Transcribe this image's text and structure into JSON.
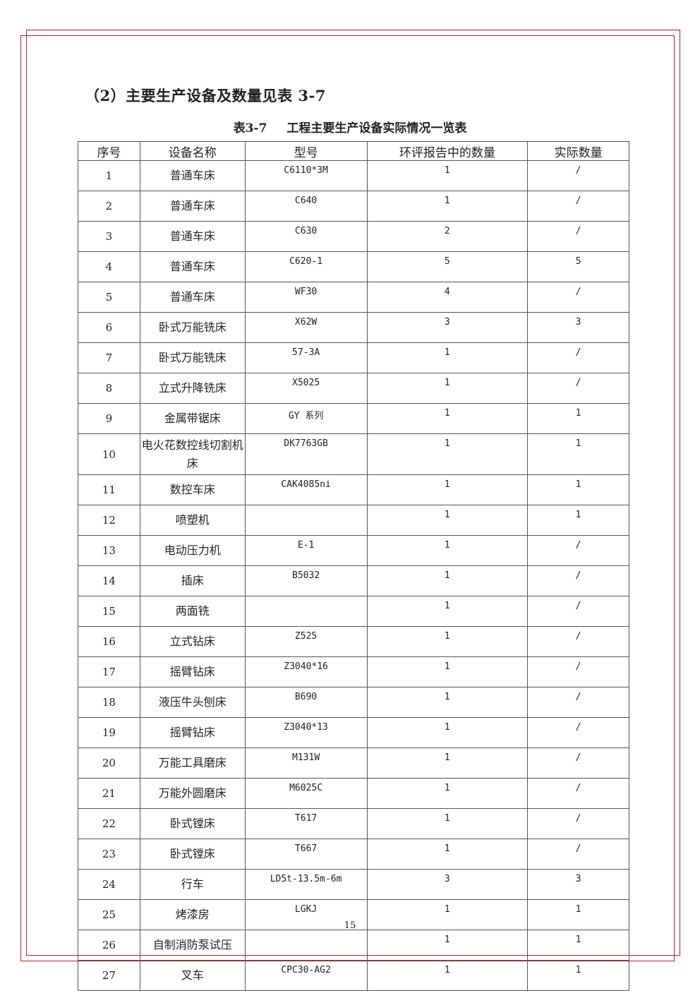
{
  "heading": "（2）主要生产设备及数量见表 3-7",
  "caption": {
    "number": "表3-7",
    "title": "工程主要生产设备实际情况一览表"
  },
  "table": {
    "headers": [
      "序号",
      "设备名称",
      "型号",
      "环评报告中的数量",
      "实际数量"
    ],
    "rows": [
      [
        "1",
        "普通车床",
        "C6110*3M",
        "1",
        "/"
      ],
      [
        "2",
        "普通车床",
        "C640",
        "1",
        "/"
      ],
      [
        "3",
        "普通车床",
        "C630",
        "2",
        "/"
      ],
      [
        "4",
        "普通车床",
        "C620-1",
        "5",
        "5"
      ],
      [
        "5",
        "普通车床",
        "WF30",
        "4",
        "/"
      ],
      [
        "6",
        "卧式万能铣床",
        "X62W",
        "3",
        "3"
      ],
      [
        "7",
        "卧式万能铣床",
        "57-3A",
        "1",
        "/"
      ],
      [
        "8",
        "立式升降铣床",
        "X5025",
        "1",
        "/"
      ],
      [
        "9",
        "金属带锯床",
        "GY 系列",
        "1",
        "1"
      ],
      [
        "10",
        "电火花数控线切割机床",
        "DK7763GB",
        "1",
        "1"
      ],
      [
        "11",
        "数控车床",
        "CAK4085ni",
        "1",
        "1"
      ],
      [
        "12",
        "喷塑机",
        "",
        "1",
        "1"
      ],
      [
        "13",
        "电动压力机",
        "E-1",
        "1",
        "/"
      ],
      [
        "14",
        "插床",
        "B5032",
        "1",
        "/"
      ],
      [
        "15",
        "两面铣",
        "",
        "1",
        "/"
      ],
      [
        "16",
        "立式钻床",
        "Z525",
        "1",
        "/"
      ],
      [
        "17",
        "摇臂钻床",
        "Z3040*16",
        "1",
        "/"
      ],
      [
        "18",
        "液压牛头刨床",
        "B690",
        "1",
        "/"
      ],
      [
        "19",
        "摇臂钻床",
        "Z3040*13",
        "1",
        "/"
      ],
      [
        "20",
        "万能工具磨床",
        "M131W",
        "1",
        "/"
      ],
      [
        "21",
        "万能外圆磨床",
        "M6025C",
        "1",
        "/"
      ],
      [
        "22",
        "卧式镗床",
        "T617",
        "1",
        "/"
      ],
      [
        "23",
        "卧式镗床",
        "T667",
        "1",
        "/"
      ],
      [
        "24",
        "行车",
        "LD5t-13.5m-6m",
        "3",
        "3"
      ],
      [
        "25",
        "烤漆房",
        "LGKJ",
        "1",
        "1"
      ],
      [
        "26",
        "自制消防泵试压",
        "",
        "1",
        "1"
      ],
      [
        "27",
        "叉车",
        "CPC30-AG2",
        "1",
        "1"
      ]
    ]
  },
  "page_number": "15",
  "colors": {
    "frame": "#b0232a",
    "rule": "#555555"
  }
}
